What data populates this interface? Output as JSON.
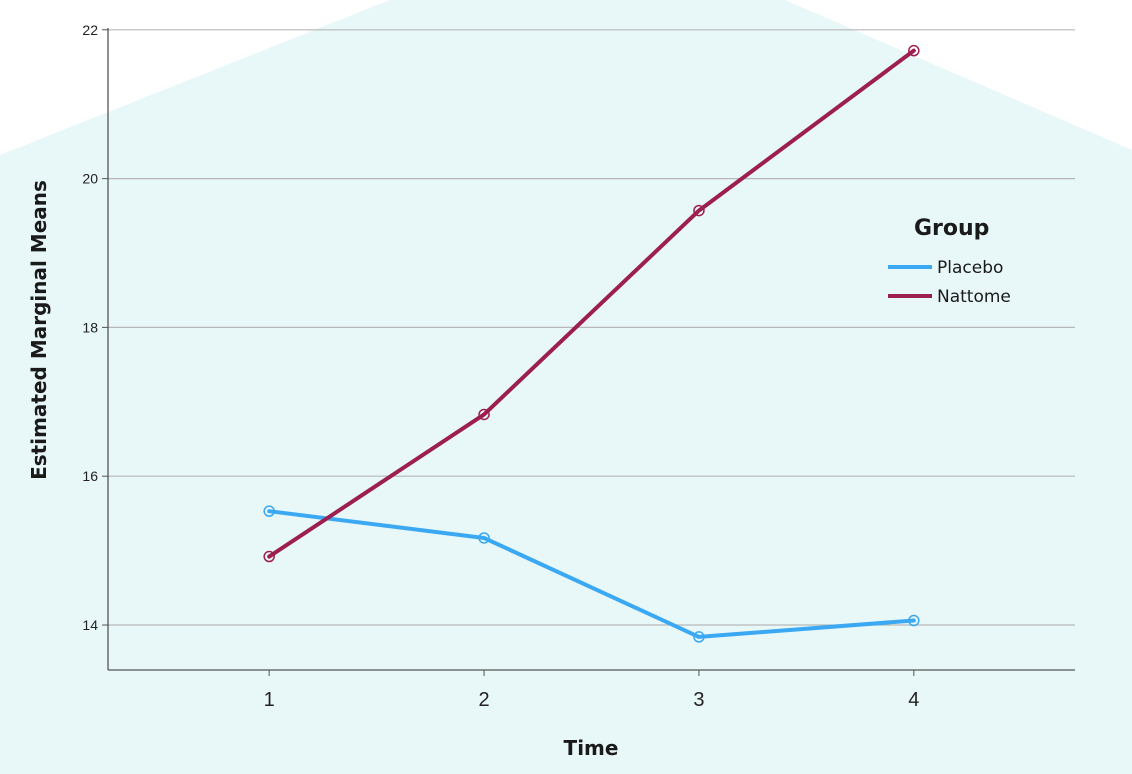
{
  "chart_data": {
    "type": "line",
    "xlabel": "Time",
    "ylabel": "Estimated Marginal Means",
    "x": [
      1,
      2,
      3,
      4
    ],
    "ylim": [
      13.4,
      22
    ],
    "yticks": [
      14,
      16,
      18,
      20,
      22
    ],
    "grid": true,
    "legend_title": "Group",
    "legend_position": "right",
    "series": [
      {
        "name": "Placebo",
        "color": "#3aa8f2",
        "values": [
          15.53,
          15.17,
          13.84,
          14.06
        ]
      },
      {
        "name": "Nattome",
        "color": "#9c1f4f",
        "values": [
          14.92,
          16.83,
          19.57,
          21.72
        ]
      }
    ],
    "background_color": "#e8f7f8"
  }
}
